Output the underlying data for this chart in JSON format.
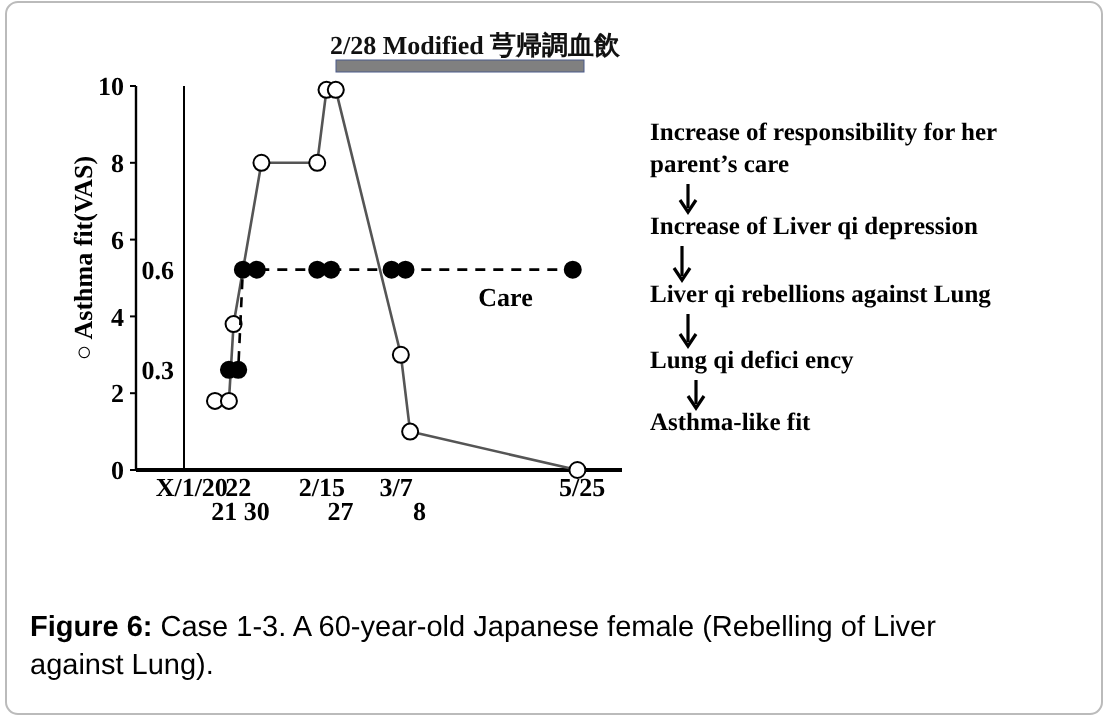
{
  "chart_data": {
    "type": "line",
    "ylabel": "○ Asthma fit(VAS)",
    "categories": [
      null,
      null,
      null,
      null,
      null,
      null,
      null,
      null,
      null,
      null,
      null,
      null,
      "X/1/20",
      null,
      null,
      null,
      null,
      null,
      null,
      "21",
      null,
      null,
      "22",
      null,
      null,
      null,
      "30",
      null,
      null,
      null,
      null,
      null,
      null,
      null,
      null,
      null,
      null,
      null,
      null,
      null,
      "2/15",
      null,
      null,
      null,
      "27",
      null,
      null,
      null,
      null,
      null,
      null,
      null,
      null,
      null,
      null,
      null,
      "3/7",
      null,
      null,
      null,
      null,
      "8",
      null,
      null,
      null,
      null,
      null,
      null,
      null,
      null,
      null,
      null,
      null,
      null,
      null,
      null,
      null,
      null,
      null,
      null,
      null,
      null,
      null,
      null,
      null,
      null,
      null,
      null,
      null,
      null,
      null,
      null,
      null,
      null,
      null,
      null,
      "5/25",
      null,
      null,
      null
    ],
    "ylim": [
      0,
      10
    ],
    "yticks": [
      0,
      2,
      4,
      6,
      8,
      10
    ],
    "y2lim": [
      0,
      1.15
    ],
    "y2ticks": [
      0.3,
      0.6
    ],
    "grid": false,
    "series": [
      {
        "color": "#000000",
        "marker": "circle",
        "line_style": "solid",
        "values": [
          null,
          null,
          null,
          null,
          null,
          null,
          null,
          null,
          null,
          null,
          null,
          null,
          null,
          null,
          null,
          null,
          null,
          1.8,
          null,
          null,
          1.8,
          3.8,
          null,
          null,
          null,
          null,
          null,
          8,
          null,
          null,
          null,
          null,
          null,
          null,
          null,
          null,
          null,
          null,
          null,
          8,
          null,
          9.9,
          null,
          9.9,
          null,
          null,
          null,
          null,
          null,
          null,
          null,
          null,
          null,
          null,
          null,
          null,
          null,
          3,
          null,
          1,
          null,
          null,
          null,
          null,
          null,
          null,
          null,
          null,
          null,
          null,
          null,
          null,
          null,
          null,
          null,
          null,
          null,
          null,
          null,
          null,
          null,
          null,
          null,
          null,
          null,
          null,
          null,
          null,
          null,
          null,
          null,
          null,
          null,
          null,
          null,
          0,
          null,
          null,
          null,
          null
        ]
      },
      {
        "name": "Care",
        "axis": "y2",
        "color": "#000000",
        "marker": "circle",
        "line_style": "dashed",
        "values": [
          null,
          null,
          null,
          null,
          null,
          null,
          null,
          null,
          null,
          null,
          null,
          null,
          null,
          null,
          null,
          null,
          null,
          null,
          null,
          null,
          0.3,
          null,
          0.3,
          0.6,
          null,
          null,
          0.6,
          null,
          null,
          null,
          null,
          null,
          null,
          null,
          null,
          null,
          null,
          null,
          null,
          0.6,
          null,
          null,
          0.6,
          null,
          null,
          null,
          null,
          null,
          null,
          null,
          null,
          null,
          null,
          null,
          null,
          0.6,
          null,
          null,
          0.6,
          null,
          null,
          null,
          null,
          null,
          null,
          null,
          null,
          null,
          null,
          null,
          null,
          null,
          null,
          null,
          null,
          null,
          null,
          null,
          null,
          null,
          null,
          null,
          null,
          null,
          null,
          null,
          null,
          null,
          null,
          null,
          null,
          null,
          null,
          null,
          0.6,
          null,
          null,
          null,
          null,
          null
        ]
      }
    ],
    "annotations": [
      "2/28 Modified 芎帰調血飲",
      "Increase of responsibility for her parent’s care",
      "Increase of Liver qi depression",
      "Liver qi rebellions against Lung",
      "Lung qi defici ency",
      "Asthma-like fit",
      "Figure 6: Case 1-3. A 60-year-old Japanese female (Rebelling of Liver against Lung)."
    ]
  }
}
